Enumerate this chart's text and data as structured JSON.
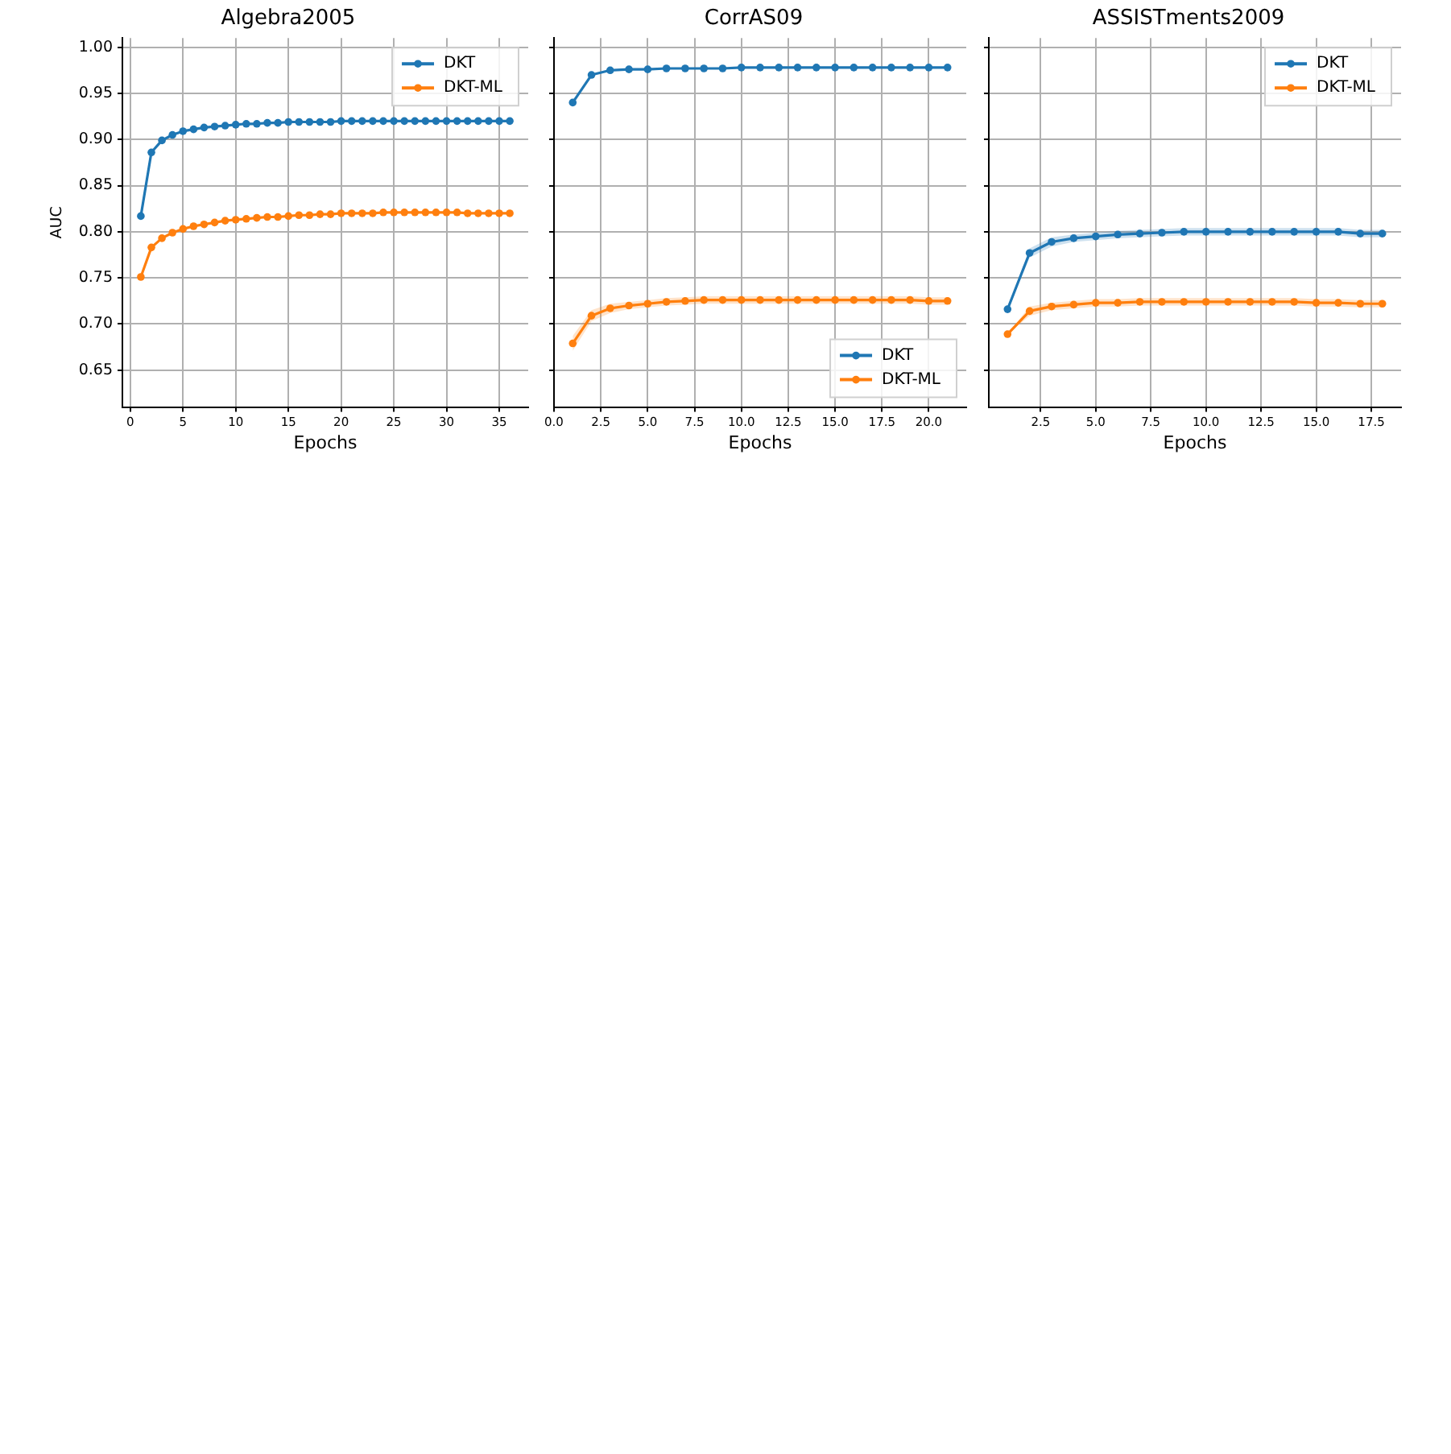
{
  "chart_data": [
    {
      "type": "line",
      "title": "Algebra2005",
      "xlabel": "Epochs",
      "ylabel": "AUC",
      "x": [
        1,
        2,
        3,
        4,
        5,
        6,
        7,
        8,
        9,
        10,
        11,
        12,
        13,
        14,
        15,
        16,
        17,
        18,
        19,
        20,
        21,
        22,
        23,
        24,
        25,
        26,
        27,
        28,
        29,
        30,
        31,
        32,
        33,
        34,
        35,
        36
      ],
      "xlim": [
        -0.75,
        37.75
      ],
      "xticks": [
        0,
        5,
        10,
        15,
        20,
        25,
        30,
        35
      ],
      "ylim": [
        0.61,
        1.01
      ],
      "yticks": [
        0.65,
        {
          "value": 0.7,
          "label": "0.70"
        },
        0.75,
        {
          "value": 0.8,
          "label": "0.80"
        },
        0.85,
        {
          "value": 0.9,
          "label": "0.90"
        },
        0.95,
        {
          "value": 1,
          "label": "1.00"
        }
      ],
      "grid": true,
      "legend": "top right",
      "marker": "circle",
      "line_style": "solid",
      "series": [
        {
          "name": "DKT",
          "color": "#1f77b4",
          "values": [
            0.817,
            0.886,
            0.899,
            0.905,
            0.909,
            0.911,
            0.913,
            0.914,
            0.915,
            0.916,
            0.917,
            0.917,
            0.918,
            0.918,
            0.919,
            0.919,
            0.919,
            0.919,
            0.919,
            0.92,
            0.92,
            0.92,
            0.92,
            0.92,
            0.92,
            0.92,
            0.92,
            0.92,
            0.92,
            0.92,
            0.92,
            0.92,
            0.92,
            0.92,
            0.92,
            0.92
          ]
        },
        {
          "name": "DKT-ML",
          "color": "#ff7f0e",
          "values": [
            0.751,
            0.783,
            0.793,
            0.799,
            0.803,
            0.806,
            0.808,
            0.81,
            0.812,
            0.813,
            0.814,
            0.815,
            0.816,
            0.816,
            0.817,
            0.818,
            0.818,
            0.819,
            0.819,
            0.82,
            0.82,
            0.82,
            0.82,
            0.821,
            0.821,
            0.821,
            0.821,
            0.821,
            0.821,
            0.821,
            0.821,
            0.82,
            0.82,
            0.82,
            0.82,
            0.82
          ]
        }
      ]
    },
    {
      "type": "line",
      "title": "CorrAS09",
      "xlabel": "Epochs",
      "x": [
        1,
        2,
        3,
        4,
        5,
        6,
        7,
        8,
        9,
        10,
        11,
        12,
        13,
        14,
        15,
        16,
        17,
        18,
        19,
        20,
        21
      ],
      "xlim": [
        0,
        22
      ],
      "xticks": [
        {
          "value": 0,
          "label": "0.0"
        },
        2.5,
        {
          "value": 5,
          "label": "5.0"
        },
        7.5,
        {
          "value": 10,
          "label": "10.0"
        },
        12.5,
        {
          "value": 15,
          "label": "15.0"
        },
        17.5,
        {
          "value": 20,
          "label": "20.0"
        }
      ],
      "ylim": [
        0.61,
        1.01
      ],
      "yticks": [
        0.65,
        0.7,
        0.75,
        0.8,
        0.85,
        0.9,
        0.95,
        1.0
      ],
      "tick_labels": "x",
      "grid": true,
      "legend": "bottom right",
      "marker": "circle",
      "line_style": "solid",
      "series": [
        {
          "name": "DKT",
          "color": "#1f77b4",
          "values": [
            0.94,
            0.97,
            0.975,
            0.976,
            0.976,
            0.977,
            0.977,
            0.977,
            0.977,
            0.978,
            0.978,
            0.978,
            0.978,
            0.978,
            0.978,
            0.978,
            0.978,
            0.978,
            0.978,
            0.978,
            0.978
          ]
        },
        {
          "name": "DKT-ML",
          "color": "#ff7f0e",
          "values": [
            0.679,
            0.709,
            0.717,
            0.72,
            0.722,
            0.724,
            0.725,
            0.726,
            0.726,
            0.726,
            0.726,
            0.726,
            0.726,
            0.726,
            0.726,
            0.726,
            0.726,
            0.726,
            0.726,
            0.725,
            0.725
          ],
          "lower": [
            0.671,
            0.703,
            0.712,
            0.716,
            0.718,
            0.72,
            0.721,
            0.722,
            0.722,
            0.722,
            0.722,
            0.722,
            0.722,
            0.722,
            0.722,
            0.722,
            0.722,
            0.722,
            0.722,
            0.721,
            0.721
          ],
          "upper": [
            0.687,
            0.715,
            0.722,
            0.724,
            0.726,
            0.728,
            0.729,
            0.73,
            0.73,
            0.73,
            0.73,
            0.73,
            0.73,
            0.73,
            0.73,
            0.73,
            0.73,
            0.73,
            0.73,
            0.729,
            0.729
          ]
        }
      ]
    },
    {
      "type": "line",
      "title": "ASSISTments2009",
      "xlabel": "Epochs",
      "x": [
        1,
        2,
        3,
        4,
        5,
        6,
        7,
        8,
        9,
        10,
        11,
        12,
        13,
        14,
        15,
        16,
        17,
        18
      ],
      "xlim": [
        0.15,
        18.85
      ],
      "xticks": [
        2.5,
        {
          "value": 5,
          "label": "5.0"
        },
        7.5,
        {
          "value": 10,
          "label": "10.0"
        },
        12.5,
        {
          "value": 15,
          "label": "15.0"
        },
        17.5
      ],
      "ylim": [
        0.61,
        1.01
      ],
      "yticks": [
        0.65,
        0.7,
        0.75,
        0.8,
        0.85,
        0.9,
        0.95,
        1.0
      ],
      "tick_labels": "x",
      "grid": true,
      "legend": "top right",
      "marker": "circle",
      "line_style": "solid",
      "series": [
        {
          "name": "DKT",
          "color": "#1f77b4",
          "values": [
            0.716,
            0.777,
            0.789,
            0.793,
            0.795,
            0.797,
            0.798,
            0.799,
            0.8,
            0.8,
            0.8,
            0.8,
            0.8,
            0.8,
            0.8,
            0.8,
            0.798,
            0.798
          ],
          "lower": [
            0.716,
            0.772,
            0.784,
            0.789,
            0.791,
            0.793,
            0.794,
            0.795,
            0.796,
            0.796,
            0.796,
            0.796,
            0.796,
            0.796,
            0.796,
            0.796,
            0.794,
            0.794
          ],
          "upper": [
            0.716,
            0.782,
            0.794,
            0.797,
            0.799,
            0.801,
            0.802,
            0.803,
            0.804,
            0.804,
            0.804,
            0.804,
            0.804,
            0.804,
            0.804,
            0.804,
            0.802,
            0.802
          ]
        },
        {
          "name": "DKT-ML",
          "color": "#ff7f0e",
          "values": [
            0.689,
            0.714,
            0.719,
            0.721,
            0.723,
            0.723,
            0.724,
            0.724,
            0.724,
            0.724,
            0.724,
            0.724,
            0.724,
            0.724,
            0.723,
            0.723,
            0.722,
            0.722
          ],
          "lower": [
            0.689,
            0.709,
            0.715,
            0.717,
            0.719,
            0.719,
            0.72,
            0.72,
            0.72,
            0.72,
            0.72,
            0.72,
            0.72,
            0.72,
            0.719,
            0.719,
            0.718,
            0.718
          ],
          "upper": [
            0.689,
            0.719,
            0.723,
            0.725,
            0.727,
            0.727,
            0.728,
            0.728,
            0.728,
            0.728,
            0.728,
            0.728,
            0.728,
            0.728,
            0.727,
            0.727,
            0.726,
            0.726
          ]
        }
      ]
    }
  ]
}
